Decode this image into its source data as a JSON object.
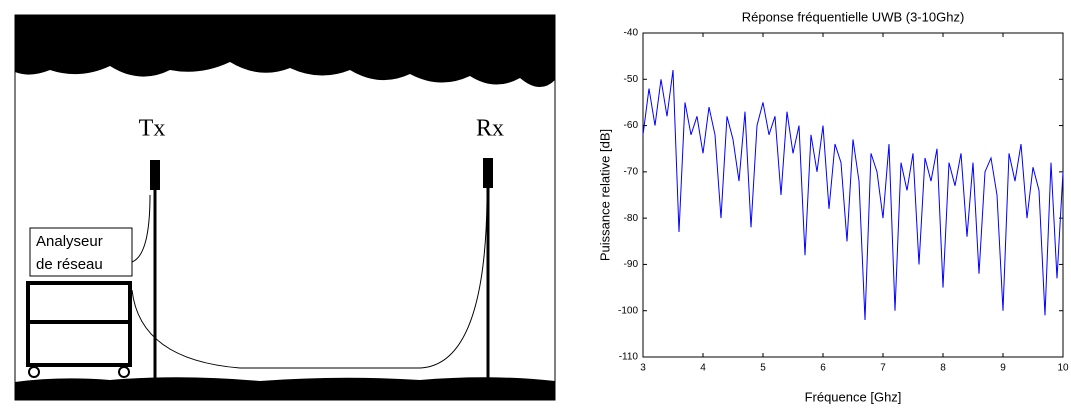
{
  "diagram": {
    "tx": "Tx",
    "rx": "Rx",
    "analyzer_line1": "Analyseur",
    "analyzer_line2": "de réseau"
  },
  "chart_data": {
    "type": "line",
    "title": "Réponse fréquentielle UWB (3-10Ghz)",
    "x_label": "Fréquence [Ghz]",
    "y_label": "Puissance relative [dB]",
    "x": [
      3.0,
      3.1,
      3.2,
      3.3,
      3.4,
      3.5,
      3.6,
      3.7,
      3.8,
      3.9,
      4.0,
      4.1,
      4.2,
      4.3,
      4.4,
      4.5,
      4.6,
      4.7,
      4.8,
      4.9,
      5.0,
      5.1,
      5.2,
      5.3,
      5.4,
      5.5,
      5.6,
      5.7,
      5.8,
      5.9,
      6.0,
      6.1,
      6.2,
      6.3,
      6.4,
      6.5,
      6.6,
      6.7,
      6.8,
      6.9,
      7.0,
      7.1,
      7.2,
      7.3,
      7.4,
      7.5,
      7.6,
      7.7,
      7.8,
      7.9,
      8.0,
      8.1,
      8.2,
      8.3,
      8.4,
      8.5,
      8.6,
      8.7,
      8.8,
      8.9,
      9.0,
      9.1,
      9.2,
      9.3,
      9.4,
      9.5,
      9.6,
      9.7,
      9.8,
      9.9,
      10.0
    ],
    "values": [
      -62,
      -52,
      -60,
      -50,
      -58,
      -48,
      -83,
      -55,
      -62,
      -58,
      -66,
      -56,
      -62,
      -80,
      -58,
      -63,
      -72,
      -57,
      -82,
      -60,
      -55,
      -62,
      -58,
      -75,
      -57,
      -66,
      -60,
      -88,
      -62,
      -70,
      -60,
      -78,
      -64,
      -68,
      -85,
      -63,
      -72,
      -102,
      -66,
      -70,
      -80,
      -64,
      -100,
      -68,
      -74,
      -66,
      -90,
      -67,
      -72,
      -65,
      -95,
      -68,
      -73,
      -66,
      -84,
      -68,
      -92,
      -70,
      -67,
      -75,
      -100,
      -66,
      -72,
      -64,
      -80,
      -69,
      -74,
      -101,
      -68,
      -93,
      -70
    ],
    "color": "#0000ff",
    "xlim": [
      3,
      10
    ],
    "ylim": [
      -110,
      -40
    ],
    "xticks": [
      3,
      4,
      5,
      6,
      7,
      8,
      9,
      10
    ],
    "yticks": [
      -110,
      -100,
      -90,
      -80,
      -70,
      -60,
      -50,
      -40
    ],
    "grid": false
  }
}
